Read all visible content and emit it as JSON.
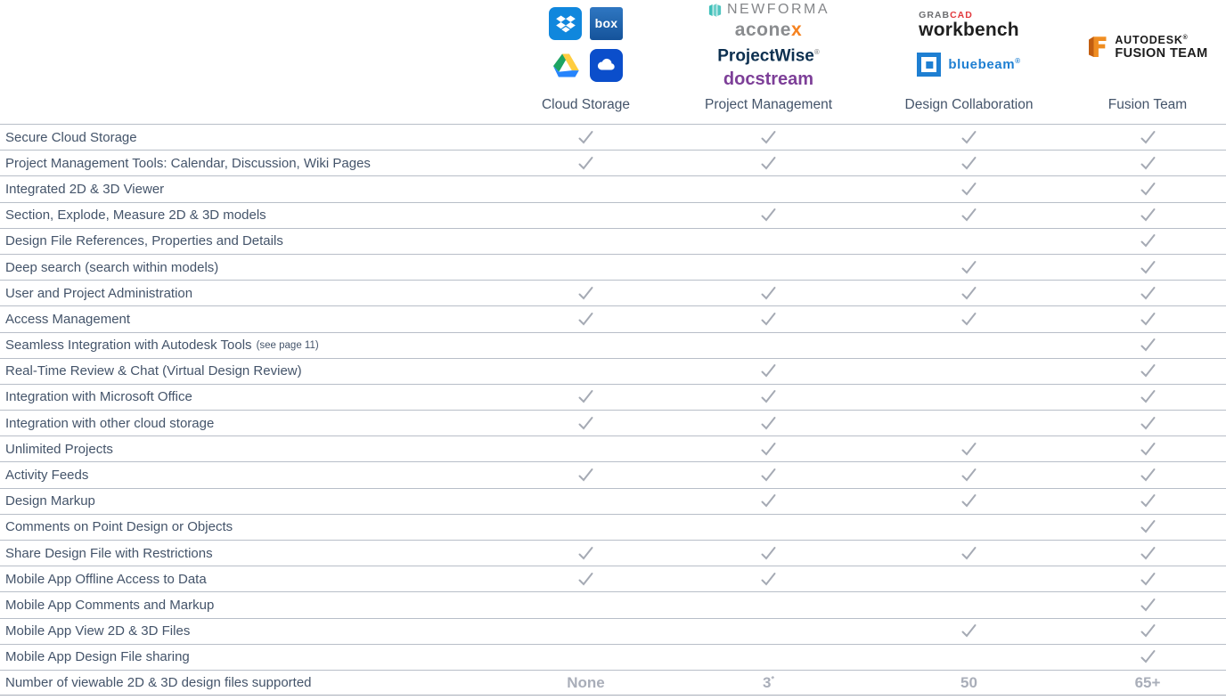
{
  "columns": [
    {
      "label": "Cloud Storage",
      "logos": [
        "dropbox",
        "box",
        "google-drive",
        "onedrive"
      ]
    },
    {
      "label": "Project Management",
      "logos": [
        "newforma",
        "aconex",
        "projectwise",
        "docstream"
      ]
    },
    {
      "label": "Design Collaboration",
      "logos": [
        "grabcad-workbench",
        "bluebeam"
      ]
    },
    {
      "label": "Fusion Team",
      "logos": [
        "autodesk-fusion-team"
      ]
    }
  ],
  "logos": {
    "box_text": "box",
    "newforma_text": "NEWFORMA",
    "aconex_prefix": "acone",
    "aconex_suffix": "x",
    "projectwise_text": "ProjectWise",
    "projectwise_mark": "®",
    "docstream_text": "docstream",
    "grabcad_prefix": "GRAB",
    "grabcad_suffix": "CAD",
    "workbench_text": "workbench",
    "bluebeam_text": "bluebeam",
    "bluebeam_mark": "®",
    "autodesk_text": "AUTODESK",
    "autodesk_mark": "®",
    "fusion_team_text": "FUSION TEAM"
  },
  "features": [
    {
      "label": "Secure Cloud Storage",
      "values": [
        true,
        true,
        true,
        true
      ]
    },
    {
      "label": "Project Management Tools: Calendar, Discussion, Wiki Pages",
      "values": [
        true,
        true,
        true,
        true
      ]
    },
    {
      "label": "Integrated 2D & 3D Viewer",
      "values": [
        false,
        false,
        true,
        true
      ]
    },
    {
      "label": "Section, Explode, Measure 2D & 3D models",
      "values": [
        false,
        true,
        true,
        true
      ]
    },
    {
      "label": "Design File References, Properties and Details",
      "values": [
        false,
        false,
        false,
        true
      ]
    },
    {
      "label": "Deep search (search within models)",
      "values": [
        false,
        false,
        true,
        true
      ]
    },
    {
      "label": "User and Project Administration",
      "values": [
        true,
        true,
        true,
        true
      ]
    },
    {
      "label": "Access Management",
      "values": [
        true,
        true,
        true,
        true
      ]
    },
    {
      "label": "Seamless Integration with Autodesk Tools",
      "note": "(see page 11)",
      "values": [
        false,
        false,
        false,
        true
      ]
    },
    {
      "label": "Real-Time Review & Chat (Virtual Design Review)",
      "values": [
        false,
        true,
        false,
        true
      ]
    },
    {
      "label": "Integration with Microsoft Office",
      "values": [
        true,
        true,
        false,
        true
      ]
    },
    {
      "label": "Integration with other cloud storage",
      "values": [
        true,
        true,
        false,
        true
      ]
    },
    {
      "label": "Unlimited Projects",
      "values": [
        false,
        true,
        true,
        true
      ]
    },
    {
      "label": "Activity Feeds",
      "values": [
        true,
        true,
        true,
        true
      ]
    },
    {
      "label": "Design Markup",
      "values": [
        false,
        true,
        true,
        true
      ]
    },
    {
      "label": "Comments on Point Design or Objects",
      "values": [
        false,
        false,
        false,
        true
      ]
    },
    {
      "label": "Share Design File with Restrictions",
      "values": [
        true,
        true,
        true,
        true
      ]
    },
    {
      "label": "Mobile App Offline Access to Data",
      "values": [
        true,
        true,
        false,
        true
      ]
    },
    {
      "label": "Mobile App Comments and Markup",
      "values": [
        false,
        false,
        false,
        true
      ]
    },
    {
      "label": "Mobile App View 2D & 3D Files",
      "values": [
        false,
        false,
        true,
        true
      ]
    },
    {
      "label": "Mobile App Design File sharing",
      "values": [
        false,
        false,
        false,
        true
      ]
    },
    {
      "label": "Number of viewable 2D & 3D design files supported",
      "values": [
        "None",
        {
          "text": "3",
          "sup": "*"
        },
        "50",
        "65+"
      ]
    }
  ],
  "colors": {
    "label-color": "#44546a",
    "check-color": "#a5aab4",
    "line-color": "#b8bec8",
    "muted-value": "#a9aeb9",
    "dropbox-blue": "#1087dd",
    "onedrive-blue": "#0b4ecb",
    "aconex-orange": "#f58220",
    "docstream-purple": "#7d3f98",
    "grabcad-red": "#e23a3e",
    "bluebeam-blue": "#1e7fd2",
    "newforma-teal": "#3fc0ba",
    "autodesk-orange": "#ef8d22",
    "autodesk-orange-dark": "#c25e11",
    "gdrive-green": "#1da462",
    "gdrive-yellow": "#ffcd40",
    "gdrive-blue": "#2684fc"
  }
}
